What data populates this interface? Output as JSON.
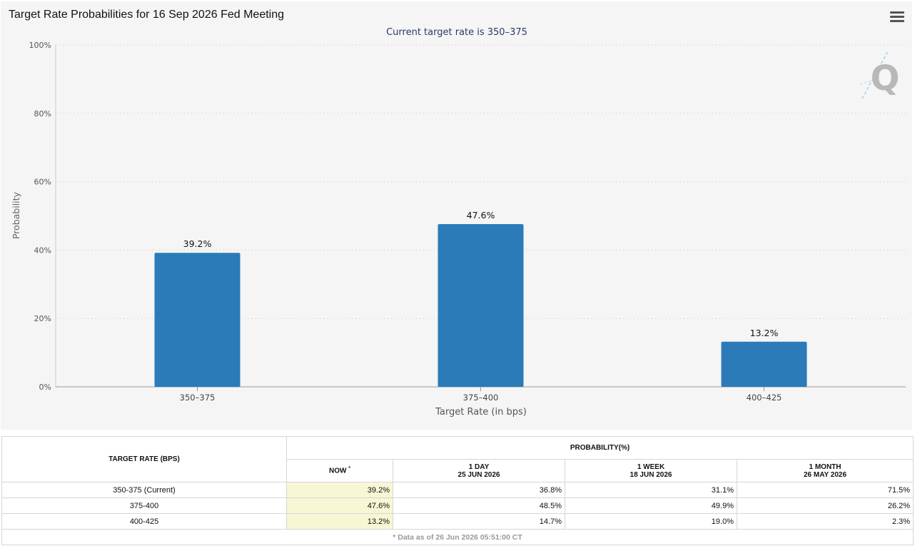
{
  "chart": {
    "title": "Target Rate Probabilities for 16 Sep 2026 Fed Meeting",
    "subtitle": "Current target rate is 350–375",
    "menu_icon": "hamburger-menu-icon",
    "watermark_icon": "q-logo-icon",
    "bar_color": "#2b7bb9"
  },
  "chart_data": {
    "type": "bar",
    "title": "Target Rate Probabilities for 16 Sep 2026 Fed Meeting",
    "subtitle": "Current target rate is 350–375",
    "xlabel": "Target Rate (in bps)",
    "ylabel": "Probability",
    "categories": [
      "350–375",
      "375–400",
      "400–425"
    ],
    "values": [
      39.2,
      47.6,
      13.2
    ],
    "data_labels": [
      "39.2%",
      "47.6%",
      "13.2%"
    ],
    "ylim": [
      0,
      100
    ],
    "yticks": [
      0,
      20,
      40,
      60,
      80,
      100
    ],
    "ytick_labels": [
      "0%",
      "20%",
      "40%",
      "60%",
      "80%",
      "100%"
    ],
    "grid": true
  },
  "table": {
    "header_rate": "TARGET RATE (BPS)",
    "header_prob": "PROBABILITY(%)",
    "columns": [
      {
        "line1": "NOW",
        "line2": ""
      },
      {
        "line1": "1 DAY",
        "line2": "25 JUN 2026"
      },
      {
        "line1": "1 WEEK",
        "line2": "18 JUN 2026"
      },
      {
        "line1": "1 MONTH",
        "line2": "26 MAY 2026"
      }
    ],
    "now_marker": "*",
    "rows": [
      {
        "rate": "350-375 (Current)",
        "values": [
          "39.2%",
          "36.8%",
          "31.1%",
          "71.5%"
        ]
      },
      {
        "rate": "375-400",
        "values": [
          "47.6%",
          "48.5%",
          "49.9%",
          "26.2%"
        ]
      },
      {
        "rate": "400-425",
        "values": [
          "13.2%",
          "14.7%",
          "19.0%",
          "2.3%"
        ]
      }
    ],
    "footnote": "* Data as of 26 Jun 2026 05:51:00 CT"
  }
}
